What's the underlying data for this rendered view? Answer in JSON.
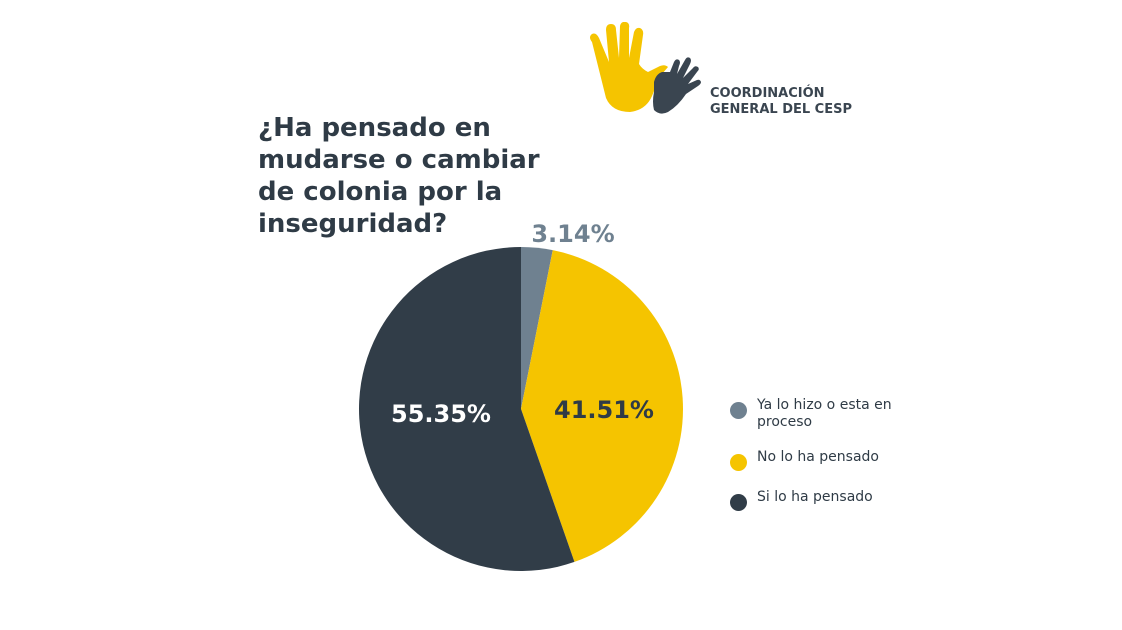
{
  "title": "¿Ha pensado en mudarse o cambiar de colonia por la inseguridad?",
  "logo": {
    "line1": "COORDINACIÓN",
    "line2": "GENERAL DEL CESP"
  },
  "colors": {
    "gray": "#6f8190",
    "yellow": "#f5c400",
    "dark": "#313d48",
    "text": "#2f3b46"
  },
  "chart_data": {
    "type": "pie",
    "slices": [
      {
        "label": "Ya lo hizo o esta en proceso",
        "value": 3.14,
        "display": "3.14%",
        "color": "#6f8190"
      },
      {
        "label": "No lo ha pensado",
        "value": 41.51,
        "display": "41.51%",
        "color": "#f5c400"
      },
      {
        "label": "Si lo ha pensado",
        "value": 55.35,
        "display": "55.35%",
        "color": "#313d48"
      }
    ],
    "legend_position": "right",
    "start_angle": "top, clockwise"
  }
}
